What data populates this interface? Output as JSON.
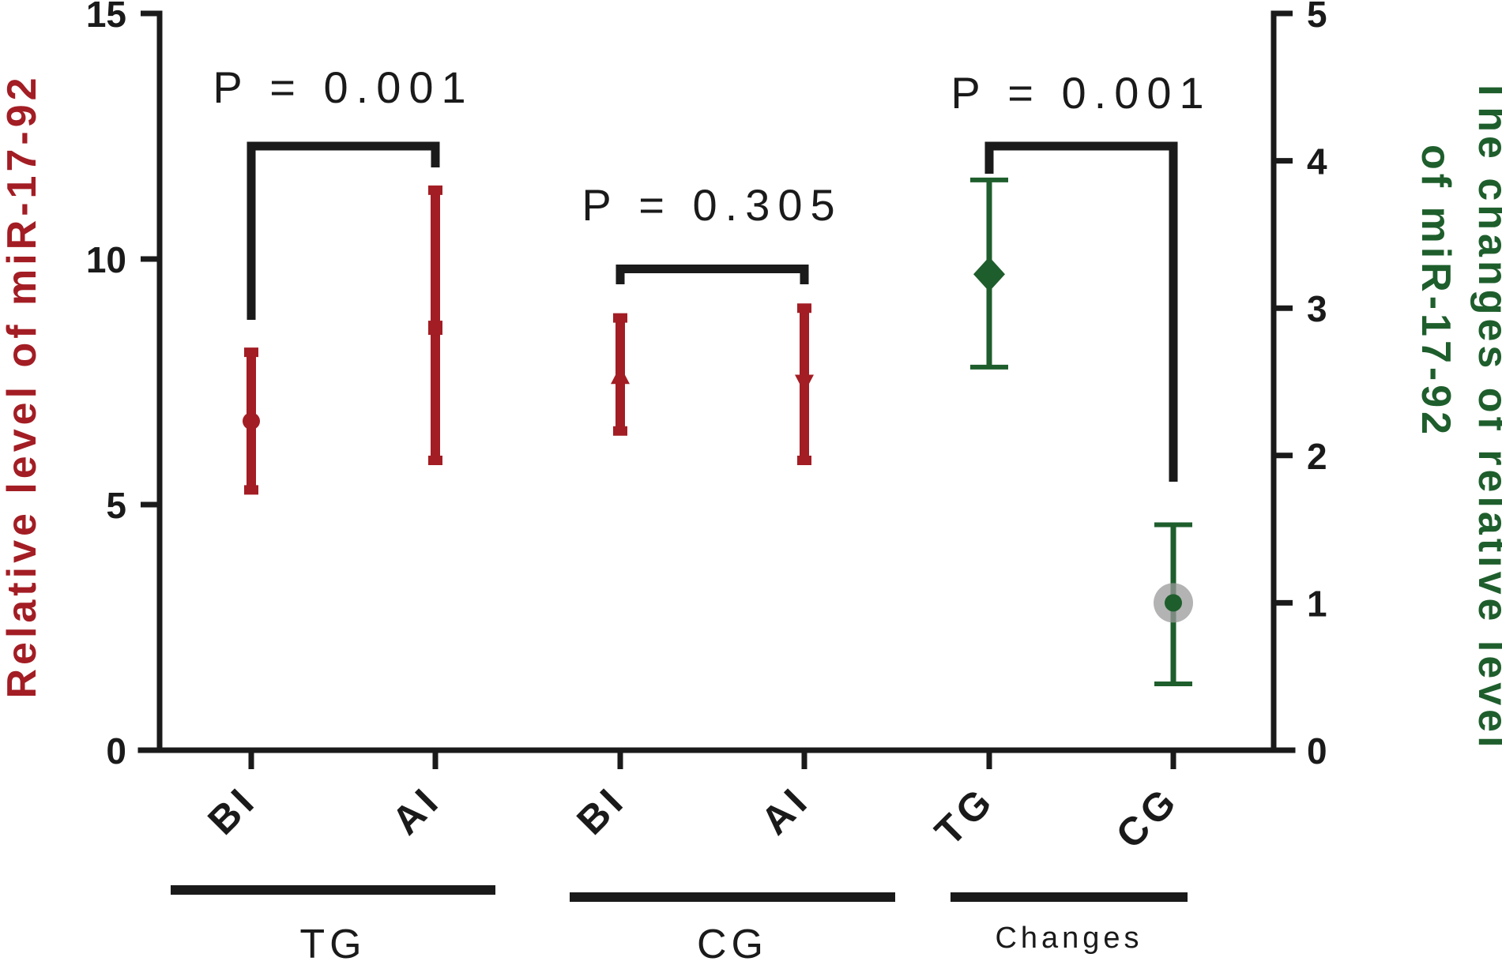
{
  "chart_data": {
    "type": "scatter",
    "left_axis": {
      "label": "Relative level of miR-17-92",
      "ylim": [
        0,
        15
      ],
      "ticks": [
        "0",
        "5",
        "10",
        "15"
      ],
      "color": "#a31d24"
    },
    "right_axis": {
      "label_lines": [
        "The changes of relative level",
        "of miR-17-92"
      ],
      "ylim": [
        0,
        5
      ],
      "ticks": [
        "0",
        "1",
        "2",
        "3",
        "4",
        "5"
      ],
      "color": "#1e5e2c"
    },
    "categories": [
      "BI",
      "AI",
      "BI",
      "AI",
      "TG",
      "CG"
    ],
    "groups": [
      {
        "label": "TG",
        "span": [
          0,
          1
        ]
      },
      {
        "label": "CG",
        "span": [
          2,
          3
        ]
      },
      {
        "label": "Changes",
        "span": [
          4,
          5
        ]
      }
    ],
    "series": [
      {
        "axis": "left",
        "color": "#a31d24",
        "points": [
          {
            "cat": 0,
            "mean": 6.7,
            "low": 5.3,
            "high": 8.1,
            "marker": "circle"
          },
          {
            "cat": 1,
            "mean": 8.6,
            "low": 5.9,
            "high": 11.4,
            "marker": "square"
          },
          {
            "cat": 2,
            "mean": 7.6,
            "low": 6.5,
            "high": 8.8,
            "marker": "triangle-up"
          },
          {
            "cat": 3,
            "mean": 7.5,
            "low": 5.9,
            "high": 9.0,
            "marker": "triangle-down"
          }
        ]
      },
      {
        "axis": "right",
        "color": "#1e5e2c",
        "points": [
          {
            "cat": 4,
            "mean": 3.23,
            "low": 2.6,
            "high": 3.87,
            "marker": "diamond"
          },
          {
            "cat": 5,
            "mean": 1.0,
            "low": 0.45,
            "high": 1.53,
            "marker": "circle"
          }
        ]
      }
    ],
    "comparisons": [
      {
        "label": "P = 0.001",
        "from": 0,
        "to": 1,
        "axis": "left",
        "y": 12.3
      },
      {
        "label": "P = 0.305",
        "from": 2,
        "to": 3,
        "axis": "left",
        "y": 9.8
      },
      {
        "label": "P = 0.001",
        "from": 4,
        "to": 5,
        "axis": "right",
        "y": 4.1
      }
    ]
  }
}
